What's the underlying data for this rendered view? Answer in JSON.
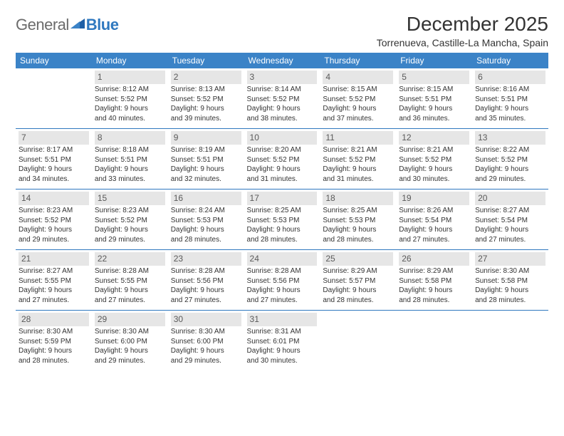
{
  "logo": {
    "word1": "General",
    "word2": "Blue"
  },
  "title": "December 2025",
  "location": "Torrenueva, Castille-La Mancha, Spain",
  "day_headers": [
    "Sunday",
    "Monday",
    "Tuesday",
    "Wednesday",
    "Thursday",
    "Friday",
    "Saturday"
  ],
  "colors": {
    "header_bg": "#3b83c7",
    "daynum_bg": "#e6e6e6",
    "rule": "#2f78bf",
    "logo_gray": "#6b6b6b",
    "logo_blue": "#2f78bf"
  },
  "weeks": [
    [
      null,
      {
        "n": "1",
        "sr": "Sunrise: 8:12 AM",
        "ss": "Sunset: 5:52 PM",
        "d1": "Daylight: 9 hours",
        "d2": "and 40 minutes."
      },
      {
        "n": "2",
        "sr": "Sunrise: 8:13 AM",
        "ss": "Sunset: 5:52 PM",
        "d1": "Daylight: 9 hours",
        "d2": "and 39 minutes."
      },
      {
        "n": "3",
        "sr": "Sunrise: 8:14 AM",
        "ss": "Sunset: 5:52 PM",
        "d1": "Daylight: 9 hours",
        "d2": "and 38 minutes."
      },
      {
        "n": "4",
        "sr": "Sunrise: 8:15 AM",
        "ss": "Sunset: 5:52 PM",
        "d1": "Daylight: 9 hours",
        "d2": "and 37 minutes."
      },
      {
        "n": "5",
        "sr": "Sunrise: 8:15 AM",
        "ss": "Sunset: 5:51 PM",
        "d1": "Daylight: 9 hours",
        "d2": "and 36 minutes."
      },
      {
        "n": "6",
        "sr": "Sunrise: 8:16 AM",
        "ss": "Sunset: 5:51 PM",
        "d1": "Daylight: 9 hours",
        "d2": "and 35 minutes."
      }
    ],
    [
      {
        "n": "7",
        "sr": "Sunrise: 8:17 AM",
        "ss": "Sunset: 5:51 PM",
        "d1": "Daylight: 9 hours",
        "d2": "and 34 minutes."
      },
      {
        "n": "8",
        "sr": "Sunrise: 8:18 AM",
        "ss": "Sunset: 5:51 PM",
        "d1": "Daylight: 9 hours",
        "d2": "and 33 minutes."
      },
      {
        "n": "9",
        "sr": "Sunrise: 8:19 AM",
        "ss": "Sunset: 5:51 PM",
        "d1": "Daylight: 9 hours",
        "d2": "and 32 minutes."
      },
      {
        "n": "10",
        "sr": "Sunrise: 8:20 AM",
        "ss": "Sunset: 5:52 PM",
        "d1": "Daylight: 9 hours",
        "d2": "and 31 minutes."
      },
      {
        "n": "11",
        "sr": "Sunrise: 8:21 AM",
        "ss": "Sunset: 5:52 PM",
        "d1": "Daylight: 9 hours",
        "d2": "and 31 minutes."
      },
      {
        "n": "12",
        "sr": "Sunrise: 8:21 AM",
        "ss": "Sunset: 5:52 PM",
        "d1": "Daylight: 9 hours",
        "d2": "and 30 minutes."
      },
      {
        "n": "13",
        "sr": "Sunrise: 8:22 AM",
        "ss": "Sunset: 5:52 PM",
        "d1": "Daylight: 9 hours",
        "d2": "and 29 minutes."
      }
    ],
    [
      {
        "n": "14",
        "sr": "Sunrise: 8:23 AM",
        "ss": "Sunset: 5:52 PM",
        "d1": "Daylight: 9 hours",
        "d2": "and 29 minutes."
      },
      {
        "n": "15",
        "sr": "Sunrise: 8:23 AM",
        "ss": "Sunset: 5:52 PM",
        "d1": "Daylight: 9 hours",
        "d2": "and 29 minutes."
      },
      {
        "n": "16",
        "sr": "Sunrise: 8:24 AM",
        "ss": "Sunset: 5:53 PM",
        "d1": "Daylight: 9 hours",
        "d2": "and 28 minutes."
      },
      {
        "n": "17",
        "sr": "Sunrise: 8:25 AM",
        "ss": "Sunset: 5:53 PM",
        "d1": "Daylight: 9 hours",
        "d2": "and 28 minutes."
      },
      {
        "n": "18",
        "sr": "Sunrise: 8:25 AM",
        "ss": "Sunset: 5:53 PM",
        "d1": "Daylight: 9 hours",
        "d2": "and 28 minutes."
      },
      {
        "n": "19",
        "sr": "Sunrise: 8:26 AM",
        "ss": "Sunset: 5:54 PM",
        "d1": "Daylight: 9 hours",
        "d2": "and 27 minutes."
      },
      {
        "n": "20",
        "sr": "Sunrise: 8:27 AM",
        "ss": "Sunset: 5:54 PM",
        "d1": "Daylight: 9 hours",
        "d2": "and 27 minutes."
      }
    ],
    [
      {
        "n": "21",
        "sr": "Sunrise: 8:27 AM",
        "ss": "Sunset: 5:55 PM",
        "d1": "Daylight: 9 hours",
        "d2": "and 27 minutes."
      },
      {
        "n": "22",
        "sr": "Sunrise: 8:28 AM",
        "ss": "Sunset: 5:55 PM",
        "d1": "Daylight: 9 hours",
        "d2": "and 27 minutes."
      },
      {
        "n": "23",
        "sr": "Sunrise: 8:28 AM",
        "ss": "Sunset: 5:56 PM",
        "d1": "Daylight: 9 hours",
        "d2": "and 27 minutes."
      },
      {
        "n": "24",
        "sr": "Sunrise: 8:28 AM",
        "ss": "Sunset: 5:56 PM",
        "d1": "Daylight: 9 hours",
        "d2": "and 27 minutes."
      },
      {
        "n": "25",
        "sr": "Sunrise: 8:29 AM",
        "ss": "Sunset: 5:57 PM",
        "d1": "Daylight: 9 hours",
        "d2": "and 28 minutes."
      },
      {
        "n": "26",
        "sr": "Sunrise: 8:29 AM",
        "ss": "Sunset: 5:58 PM",
        "d1": "Daylight: 9 hours",
        "d2": "and 28 minutes."
      },
      {
        "n": "27",
        "sr": "Sunrise: 8:30 AM",
        "ss": "Sunset: 5:58 PM",
        "d1": "Daylight: 9 hours",
        "d2": "and 28 minutes."
      }
    ],
    [
      {
        "n": "28",
        "sr": "Sunrise: 8:30 AM",
        "ss": "Sunset: 5:59 PM",
        "d1": "Daylight: 9 hours",
        "d2": "and 28 minutes."
      },
      {
        "n": "29",
        "sr": "Sunrise: 8:30 AM",
        "ss": "Sunset: 6:00 PM",
        "d1": "Daylight: 9 hours",
        "d2": "and 29 minutes."
      },
      {
        "n": "30",
        "sr": "Sunrise: 8:30 AM",
        "ss": "Sunset: 6:00 PM",
        "d1": "Daylight: 9 hours",
        "d2": "and 29 minutes."
      },
      {
        "n": "31",
        "sr": "Sunrise: 8:31 AM",
        "ss": "Sunset: 6:01 PM",
        "d1": "Daylight: 9 hours",
        "d2": "and 30 minutes."
      },
      null,
      null,
      null
    ]
  ]
}
